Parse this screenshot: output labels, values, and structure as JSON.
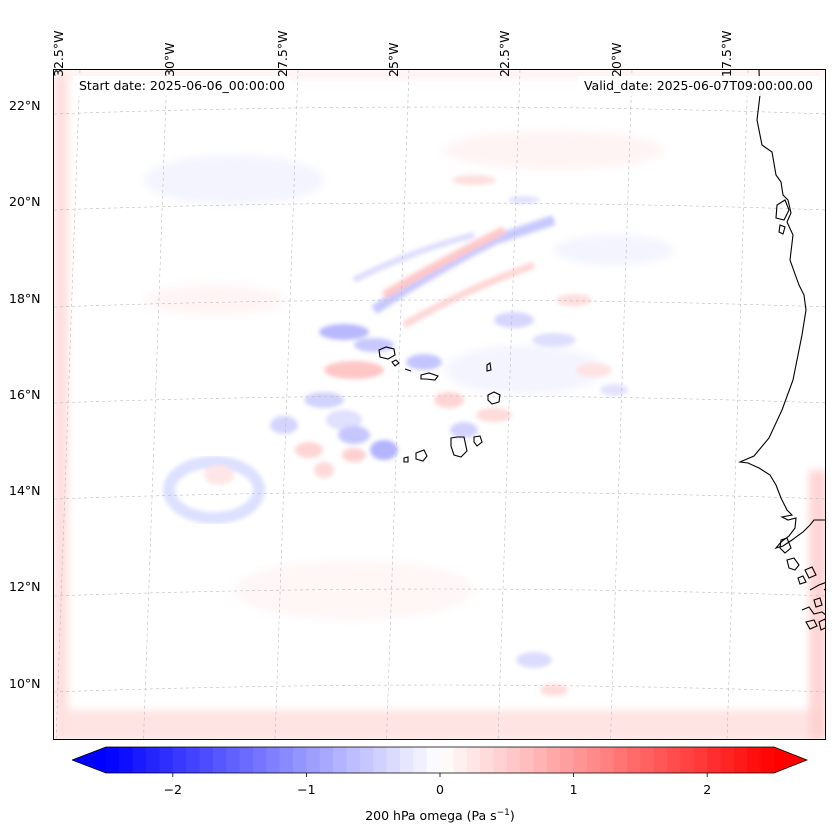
{
  "map": {
    "start_date": "Start date: 2025-06-06_00:00:00",
    "valid_date": "Valid_date: 2025-06-07T09:00:00.00",
    "lon_labels": [
      "32.5°W",
      "30°W",
      "27.5°W",
      "25°W",
      "22.5°W",
      "20°W",
      "17.5°W"
    ],
    "lat_labels": [
      "22°N",
      "20°N",
      "18°N",
      "16°N",
      "14°N",
      "12°N",
      "10°N"
    ],
    "extent": {
      "lon_min": -32.7,
      "lon_max": -15.7,
      "lat_min": 8.8,
      "lat_max": 22.8
    },
    "coastline_color": "#000000",
    "gridline_color": "#bbbbbb"
  },
  "colorbar": {
    "label_main": "200 hPa omega (Pa s",
    "label_exp": "−1",
    "label_close": ")",
    "ticks": [
      "−2",
      "−1",
      "0",
      "1",
      "2"
    ],
    "tick_values": [
      -2,
      -1,
      0,
      1,
      2
    ],
    "range": [
      -2.5,
      2.5
    ],
    "cmap": "bwr",
    "min_color": "#0000ff",
    "max_color": "#ff0000"
  }
}
